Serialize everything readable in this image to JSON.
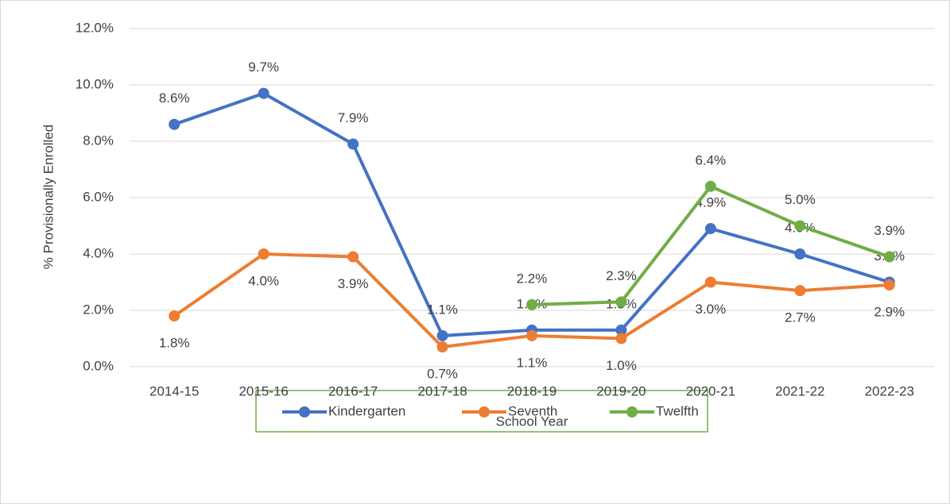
{
  "chart_data": {
    "type": "line",
    "x_label": "School Year",
    "y_label": "% Provisionally Enrolled",
    "categories": [
      "2014-15",
      "2015-16",
      "2016-17",
      "2017-18",
      "2018-19",
      "2019-20",
      "2020-21",
      "2021-22",
      "2022-23"
    ],
    "series": [
      {
        "name": "Kindergarten",
        "color": "#4472c4",
        "values": [
          8.6,
          9.7,
          7.9,
          1.1,
          1.3,
          1.3,
          4.9,
          4.0,
          3.0
        ],
        "value_labels": [
          "8.6%",
          "9.7%",
          "7.9%",
          "1.1%",
          "1.3%",
          "1.3%",
          "4.9%",
          "4.0%",
          "3.0%"
        ]
      },
      {
        "name": "Seventh",
        "color": "#ed7d31",
        "values": [
          1.8,
          4.0,
          3.9,
          0.7,
          1.1,
          1.0,
          3.0,
          2.7,
          2.9
        ],
        "value_labels": [
          "1.8%",
          "4.0%",
          "3.9%",
          "0.7%",
          "1.1%",
          "1.0%",
          "3.0%",
          "2.7%",
          "2.9%"
        ]
      },
      {
        "name": "Twelfth",
        "color": "#70ad47",
        "values": [
          null,
          null,
          null,
          null,
          2.2,
          2.3,
          6.4,
          5.0,
          3.9
        ],
        "value_labels": [
          null,
          null,
          null,
          null,
          "2.2%",
          "2.3%",
          "6.4%",
          "5.0%",
          "3.9%"
        ]
      }
    ],
    "ylim": [
      0,
      12
    ],
    "yticks": [
      {
        "value": 0,
        "label": "0.0%"
      },
      {
        "value": 2,
        "label": "2.0%"
      },
      {
        "value": 4,
        "label": "4.0%"
      },
      {
        "value": 6,
        "label": "6.0%"
      },
      {
        "value": 8,
        "label": "8.0%"
      },
      {
        "value": 10,
        "label": "10.0%"
      },
      {
        "value": 12,
        "label": "12.0%"
      }
    ],
    "grid": true,
    "legend": "bottom"
  }
}
